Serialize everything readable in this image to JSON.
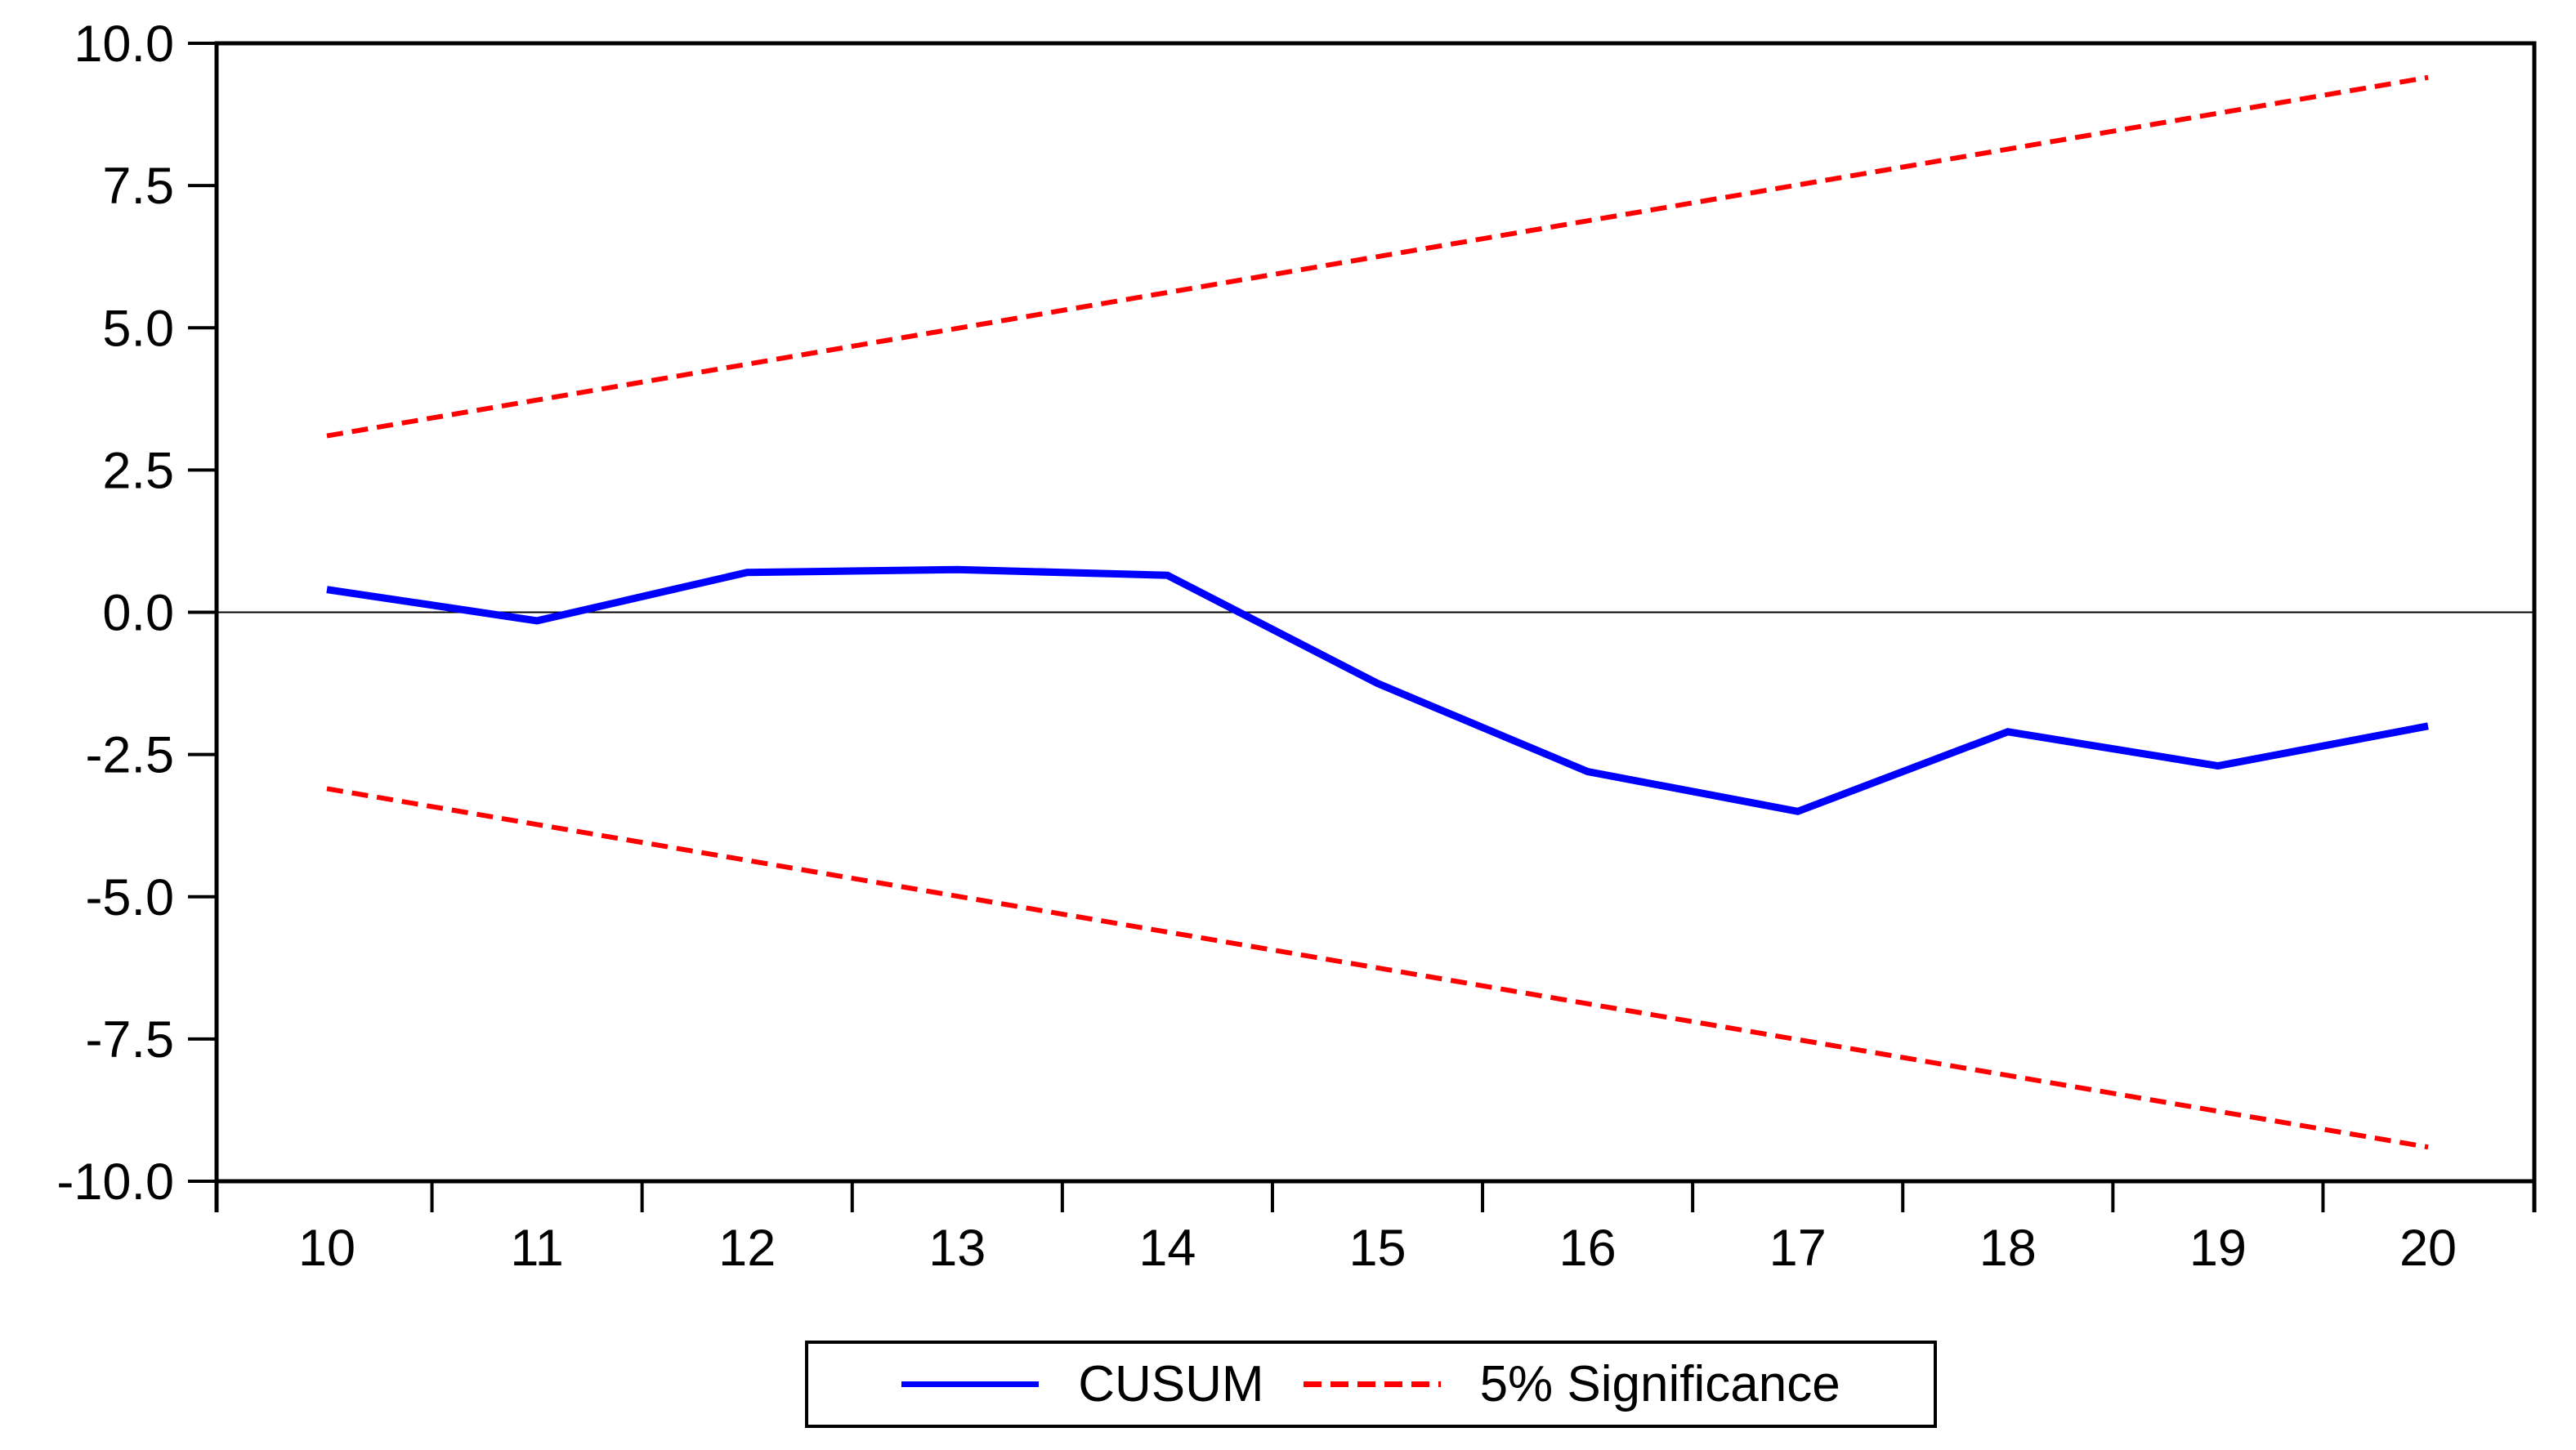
{
  "page": {
    "background": "#FFFFFF",
    "text_color": "#000000"
  },
  "chart_data": {
    "type": "line",
    "title": "",
    "xlabel": "",
    "ylabel": "",
    "x_categories": [
      10,
      11,
      12,
      13,
      14,
      15,
      16,
      17,
      18,
      19,
      20
    ],
    "series": [
      {
        "name": "CUSUM",
        "color": "#0000FF",
        "line_style": "solid",
        "values": [
          0.4,
          -0.15,
          0.7,
          0.75,
          0.65,
          -1.25,
          -2.8,
          -3.5,
          -2.1,
          -2.7,
          -2.0
        ]
      },
      {
        "name": "5% Significance upper bound",
        "color": "#FF0000",
        "line_style": "dashed",
        "values": [
          3.1,
          3.73,
          4.36,
          4.99,
          5.62,
          6.25,
          6.88,
          7.51,
          8.14,
          8.77,
          9.4
        ]
      },
      {
        "name": "5% Significance lower bound",
        "color": "#FF0000",
        "line_style": "dashed",
        "values": [
          -3.1,
          -3.73,
          -4.36,
          -4.99,
          -5.62,
          -6.25,
          -6.88,
          -7.51,
          -8.14,
          -8.77,
          -9.4
        ]
      }
    ],
    "ylim": [
      -10,
      10
    ],
    "y_ticks": [
      {
        "value": 10,
        "label": "10.0"
      },
      {
        "value": 7.5,
        "label": "7.5"
      },
      {
        "value": 5,
        "label": "5.0"
      },
      {
        "value": 2.5,
        "label": "2.5"
      },
      {
        "value": 0,
        "label": "0.0"
      },
      {
        "value": -2.5,
        "label": "-2.5"
      },
      {
        "value": -5,
        "label": "-5.0"
      },
      {
        "value": -7.5,
        "label": "-7.5"
      },
      {
        "value": -10,
        "label": "-10.0"
      }
    ],
    "x_tick_labels": [
      "10",
      "11",
      "12",
      "13",
      "14",
      "15",
      "16",
      "17",
      "18",
      "19",
      "20"
    ],
    "zero_line": true,
    "grid": false,
    "axis_color": "#000000",
    "legend": {
      "position": "bottom",
      "entries": [
        {
          "label": "CUSUM",
          "color": "#0000FF",
          "style": "solid"
        },
        {
          "label": "5% Significance",
          "color": "#FF0000",
          "style": "dashed"
        }
      ]
    }
  }
}
